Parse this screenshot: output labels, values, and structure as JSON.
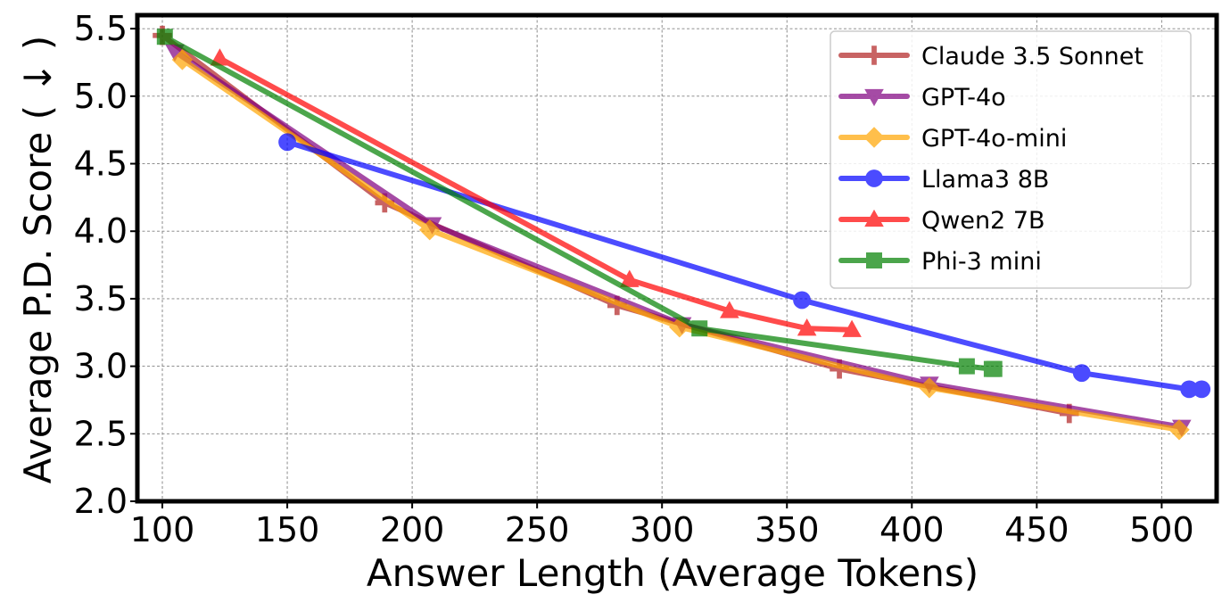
{
  "chart_data": {
    "type": "line",
    "title": "",
    "xlabel": "Answer Length (Average Tokens)",
    "ylabel": "Average P.D. Score ( ↓ )",
    "xlim": [
      90,
      522
    ],
    "ylim": [
      2.0,
      5.6
    ],
    "xticks": [
      100,
      150,
      200,
      250,
      300,
      350,
      400,
      450,
      500
    ],
    "yticks": [
      2.0,
      2.5,
      3.0,
      3.5,
      4.0,
      4.5,
      5.0,
      5.5
    ],
    "xtick_labels": [
      "100",
      "150",
      "200",
      "250",
      "300",
      "350",
      "400",
      "450",
      "500"
    ],
    "ytick_labels": [
      "2.0",
      "2.5",
      "3.0",
      "3.5",
      "4.0",
      "4.5",
      "5.0",
      "5.5"
    ],
    "grid": true,
    "legend_position": "top-right",
    "series": [
      {
        "name": "Claude 3.5 Sonnet",
        "color": "#b22222",
        "marker": "plus",
        "x": [
          100,
          189,
          282,
          371,
          463
        ],
        "y": [
          5.45,
          4.21,
          3.45,
          2.98,
          2.65
        ]
      },
      {
        "name": "GPT-4o",
        "color": "#800080",
        "marker": "triangle-down",
        "x": [
          105,
          208,
          308,
          407,
          508
        ],
        "y": [
          5.33,
          4.05,
          3.31,
          2.87,
          2.55
        ]
      },
      {
        "name": "GPT-4o-mini",
        "color": "#ffa500",
        "marker": "diamond",
        "x": [
          108,
          207,
          307,
          407,
          507
        ],
        "y": [
          5.27,
          4.01,
          3.29,
          2.84,
          2.53
        ]
      },
      {
        "name": "Llama3 8B",
        "color": "#0000ff",
        "marker": "circle",
        "x": [
          150,
          356,
          468,
          511,
          516
        ],
        "y": [
          4.66,
          3.49,
          2.95,
          2.83,
          2.83
        ]
      },
      {
        "name": "Qwen2 7B",
        "color": "#ff0000",
        "marker": "triangle-up",
        "x": [
          123,
          287,
          327,
          358,
          376
        ],
        "y": [
          5.28,
          3.64,
          3.41,
          3.28,
          3.27
        ]
      },
      {
        "name": "Phi-3 mini",
        "color": "#008000",
        "marker": "square",
        "x": [
          101,
          315,
          422,
          432,
          433
        ],
        "y": [
          5.44,
          3.28,
          3.0,
          2.98,
          2.98
        ]
      }
    ]
  }
}
